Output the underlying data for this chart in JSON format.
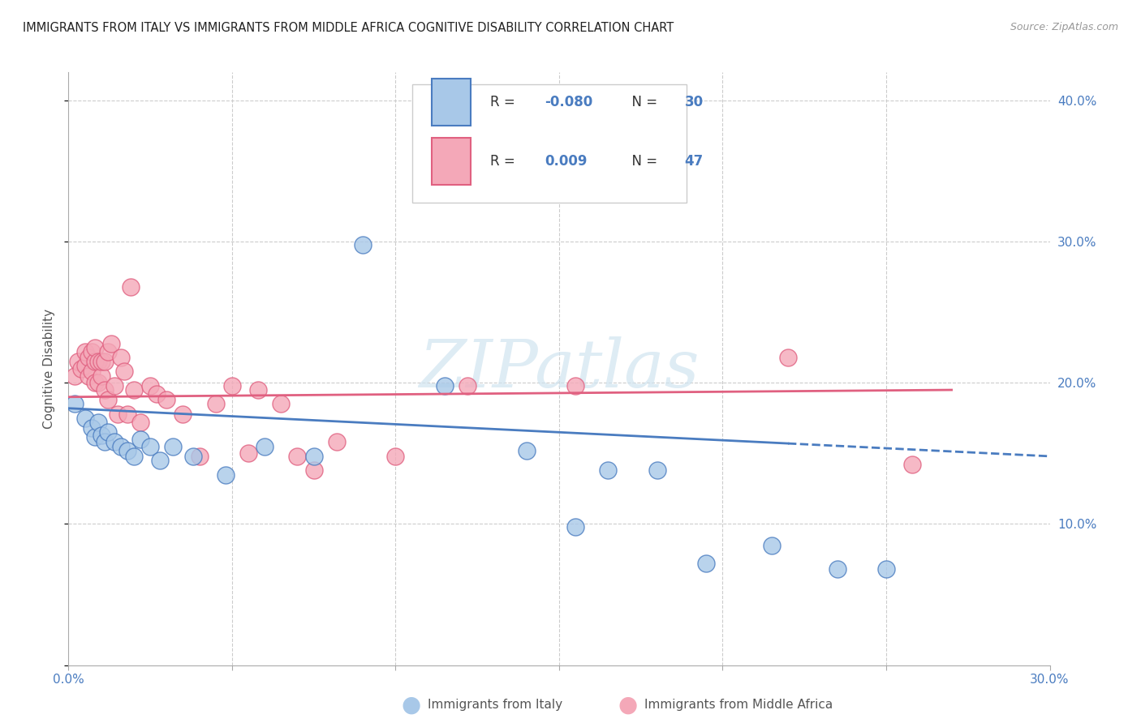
{
  "title": "IMMIGRANTS FROM ITALY VS IMMIGRANTS FROM MIDDLE AFRICA COGNITIVE DISABILITY CORRELATION CHART",
  "source": "Source: ZipAtlas.com",
  "xlabel_italy": "Immigrants from Italy",
  "xlabel_middle_africa": "Immigrants from Middle Africa",
  "ylabel": "Cognitive Disability",
  "xlim": [
    0.0,
    0.3
  ],
  "ylim": [
    0.0,
    0.42
  ],
  "R_italy": -0.08,
  "N_italy": 30,
  "R_middle_africa": 0.009,
  "N_middle_africa": 47,
  "italy_color": "#a8c8e8",
  "middle_africa_color": "#f4a8b8",
  "italy_line_color": "#4a7cc0",
  "middle_africa_line_color": "#e06080",
  "watermark": "ZIPatlas",
  "italy_line_x0": 0.0,
  "italy_line_y0": 0.182,
  "italy_line_x1": 0.3,
  "italy_line_y1": 0.148,
  "italy_line_solid_end": 0.22,
  "ma_line_x0": 0.0,
  "ma_line_y0": 0.19,
  "ma_line_x1": 0.27,
  "ma_line_y1": 0.195,
  "italy_x": [
    0.002,
    0.005,
    0.007,
    0.008,
    0.009,
    0.01,
    0.011,
    0.012,
    0.014,
    0.016,
    0.018,
    0.02,
    0.022,
    0.025,
    0.028,
    0.032,
    0.038,
    0.048,
    0.06,
    0.075,
    0.09,
    0.115,
    0.14,
    0.155,
    0.165,
    0.18,
    0.195,
    0.215,
    0.235,
    0.25
  ],
  "italy_y": [
    0.185,
    0.175,
    0.168,
    0.162,
    0.172,
    0.163,
    0.158,
    0.165,
    0.158,
    0.155,
    0.152,
    0.148,
    0.16,
    0.155,
    0.145,
    0.155,
    0.148,
    0.135,
    0.155,
    0.148,
    0.298,
    0.198,
    0.152,
    0.098,
    0.138,
    0.138,
    0.072,
    0.085,
    0.068,
    0.068
  ],
  "ma_x": [
    0.002,
    0.003,
    0.004,
    0.005,
    0.005,
    0.006,
    0.006,
    0.007,
    0.007,
    0.008,
    0.008,
    0.008,
    0.009,
    0.009,
    0.01,
    0.01,
    0.011,
    0.011,
    0.012,
    0.012,
    0.013,
    0.014,
    0.015,
    0.016,
    0.017,
    0.018,
    0.019,
    0.02,
    0.022,
    0.025,
    0.027,
    0.03,
    0.035,
    0.04,
    0.045,
    0.05,
    0.055,
    0.058,
    0.065,
    0.07,
    0.075,
    0.082,
    0.1,
    0.122,
    0.155,
    0.22,
    0.258
  ],
  "ma_y": [
    0.205,
    0.215,
    0.21,
    0.212,
    0.222,
    0.205,
    0.218,
    0.208,
    0.222,
    0.2,
    0.215,
    0.225,
    0.2,
    0.215,
    0.205,
    0.215,
    0.215,
    0.195,
    0.188,
    0.222,
    0.228,
    0.198,
    0.178,
    0.218,
    0.208,
    0.178,
    0.268,
    0.195,
    0.172,
    0.198,
    0.192,
    0.188,
    0.178,
    0.148,
    0.185,
    0.198,
    0.15,
    0.195,
    0.185,
    0.148,
    0.138,
    0.158,
    0.148,
    0.198,
    0.198,
    0.218,
    0.142
  ]
}
